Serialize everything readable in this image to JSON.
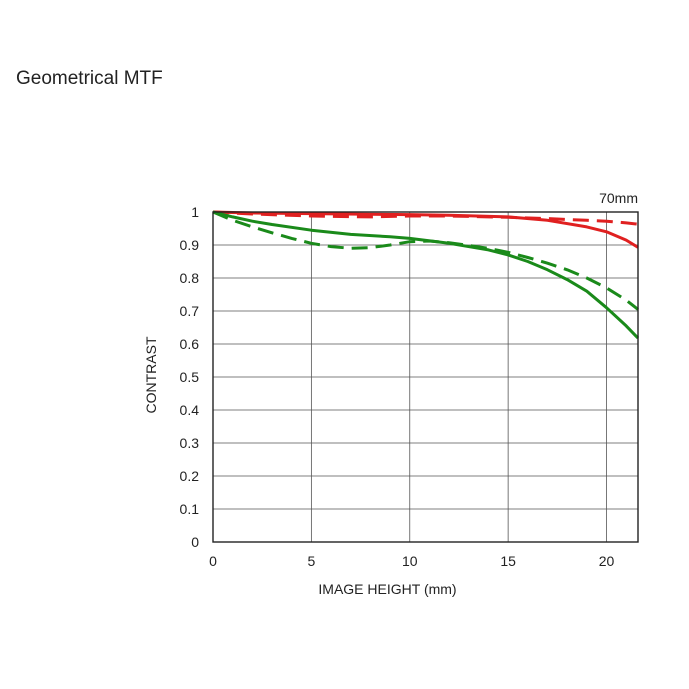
{
  "page_title": "Geometrical MTF",
  "chart_data": {
    "type": "line",
    "focal_label": "70mm",
    "xlabel": "IMAGE HEIGHT (mm)",
    "ylabel": "CONTRAST",
    "xlim": [
      0,
      21.6
    ],
    "ylim": [
      0,
      1
    ],
    "xticks": [
      0,
      5,
      10,
      15,
      20
    ],
    "yticks": [
      0,
      0.1,
      0.2,
      0.3,
      0.4,
      0.5,
      0.6,
      0.7,
      0.8,
      0.9,
      1
    ],
    "ytick_labels": [
      "0",
      "0.1",
      "0.2",
      "0.3",
      "0.4",
      "0.5",
      "0.6",
      "0.7",
      "0.8",
      "0.9",
      "1"
    ],
    "grid": true,
    "series": [
      {
        "color": "#e02020",
        "dash": "solid",
        "x": [
          0,
          2,
          5,
          8,
          10,
          12,
          15,
          17,
          19,
          20,
          21,
          21.6
        ],
        "y": [
          1.0,
          0.997,
          0.995,
          0.993,
          0.992,
          0.99,
          0.985,
          0.975,
          0.955,
          0.94,
          0.915,
          0.893
        ]
      },
      {
        "color": "#e02020",
        "dash": "dashed",
        "x": [
          0,
          2,
          5,
          8,
          10,
          12,
          15,
          17,
          19,
          20,
          21,
          21.6
        ],
        "y": [
          1.0,
          0.994,
          0.988,
          0.985,
          0.988,
          0.988,
          0.984,
          0.98,
          0.975,
          0.972,
          0.967,
          0.963
        ]
      },
      {
        "color": "#1a8a1a",
        "dash": "solid",
        "x": [
          0,
          1,
          2,
          3,
          5,
          7,
          9,
          10,
          12,
          14,
          15,
          16,
          17,
          18,
          19,
          20,
          21,
          21.6
        ],
        "y": [
          1.0,
          0.985,
          0.972,
          0.962,
          0.945,
          0.932,
          0.925,
          0.92,
          0.905,
          0.885,
          0.87,
          0.85,
          0.825,
          0.795,
          0.76,
          0.71,
          0.655,
          0.618
        ]
      },
      {
        "color": "#1a8a1a",
        "dash": "dashed",
        "x": [
          0,
          1,
          2,
          3,
          4,
          5,
          6,
          7,
          8,
          9,
          10,
          11,
          12,
          14,
          15,
          16,
          17,
          18,
          19,
          20,
          21,
          21.6
        ],
        "y": [
          1.0,
          0.975,
          0.955,
          0.937,
          0.92,
          0.905,
          0.895,
          0.89,
          0.892,
          0.9,
          0.91,
          0.912,
          0.907,
          0.89,
          0.878,
          0.862,
          0.845,
          0.825,
          0.8,
          0.77,
          0.733,
          0.705
        ]
      }
    ]
  }
}
